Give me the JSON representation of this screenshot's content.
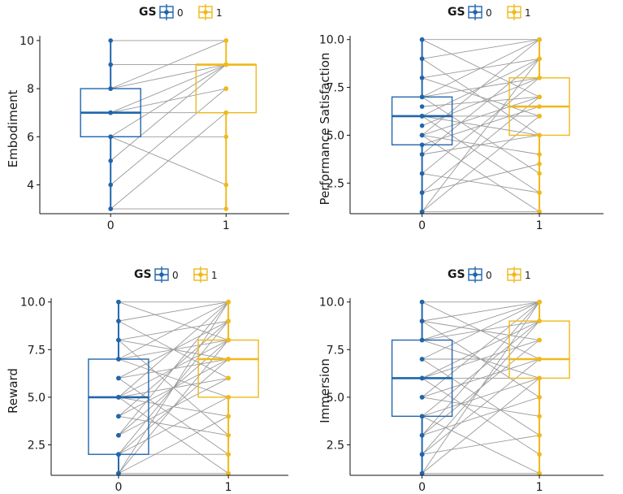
{
  "palette": {
    "group0": "#2166ac",
    "group1": "#f0b81a",
    "line": "#9a9a9a",
    "axis": "#111111"
  },
  "legend": {
    "title": "GS",
    "items": [
      "0",
      "1"
    ]
  },
  "chart_data": [
    {
      "type": "box-paired",
      "ylabel": "Embodiment",
      "xlabel": "",
      "x_categories": [
        "0",
        "1"
      ],
      "ylim": [
        2.8,
        10.2
      ],
      "yticks": [
        4,
        6,
        8,
        10
      ],
      "ytick_labels": [
        "4",
        "6",
        "8",
        "10"
      ],
      "boxes": [
        {
          "group": "0",
          "q1": 6,
          "median": 7,
          "q3": 8,
          "min": 3,
          "max": 10
        },
        {
          "group": "1",
          "q1": 7,
          "median": 9,
          "q3": 9,
          "min": 3,
          "max": 10
        }
      ],
      "pairs": [
        [
          10,
          10
        ],
        [
          9,
          9
        ],
        [
          8,
          10
        ],
        [
          8,
          9
        ],
        [
          7,
          9
        ],
        [
          7,
          8
        ],
        [
          7,
          7
        ],
        [
          6,
          9
        ],
        [
          6,
          6
        ],
        [
          6,
          4
        ],
        [
          5,
          9
        ],
        [
          4,
          8
        ],
        [
          3,
          3
        ],
        [
          3,
          7
        ]
      ]
    },
    {
      "type": "box-paired",
      "ylabel": "Performance Satisfaction",
      "xlabel": "",
      "x_categories": [
        "0",
        "1"
      ],
      "ylim": [
        0.9,
        10.2
      ],
      "yticks": [
        2.5,
        5.0,
        7.5,
        10.0
      ],
      "ytick_labels": [
        "2.5",
        "5.0",
        "7.5",
        "10.0"
      ],
      "boxes": [
        {
          "group": "0",
          "q1": 4.5,
          "median": 6,
          "q3": 7,
          "min": 1,
          "max": 10
        },
        {
          "group": "1",
          "q1": 5,
          "median": 6.5,
          "q3": 8,
          "min": 1,
          "max": 10
        }
      ],
      "pairs": [
        [
          10,
          10
        ],
        [
          10,
          7
        ],
        [
          9,
          10
        ],
        [
          9,
          5
        ],
        [
          8,
          9
        ],
        [
          8,
          6
        ],
        [
          7,
          10
        ],
        [
          7,
          8
        ],
        [
          7,
          3
        ],
        [
          6.5,
          7
        ],
        [
          6,
          9
        ],
        [
          6,
          6
        ],
        [
          6,
          5
        ],
        [
          6,
          2
        ],
        [
          5.5,
          8
        ],
        [
          5,
          10
        ],
        [
          5,
          7
        ],
        [
          5,
          4
        ],
        [
          5,
          1
        ],
        [
          4.5,
          6.5
        ],
        [
          4,
          9
        ],
        [
          4,
          5
        ],
        [
          3,
          8
        ],
        [
          3,
          2
        ],
        [
          2,
          7
        ],
        [
          2,
          3.5
        ],
        [
          1,
          9
        ],
        [
          1,
          6
        ],
        [
          1,
          1
        ]
      ]
    },
    {
      "type": "box-paired",
      "ylabel": "Reward",
      "xlabel": "",
      "x_categories": [
        "0",
        "1"
      ],
      "ylim": [
        0.9,
        10.2
      ],
      "yticks": [
        2.5,
        5.0,
        7.5,
        10.0
      ],
      "ytick_labels": [
        "2.5",
        "5.0",
        "7.5",
        "10.0"
      ],
      "boxes": [
        {
          "group": "0",
          "q1": 2,
          "median": 5,
          "q3": 7,
          "min": 1,
          "max": 10
        },
        {
          "group": "1",
          "q1": 5,
          "median": 7,
          "q3": 8,
          "min": 1,
          "max": 10
        }
      ],
      "pairs": [
        [
          10,
          10
        ],
        [
          10,
          8
        ],
        [
          9,
          10
        ],
        [
          9,
          6
        ],
        [
          8,
          9
        ],
        [
          8,
          7
        ],
        [
          8,
          3
        ],
        [
          7,
          10
        ],
        [
          7,
          8
        ],
        [
          7,
          5
        ],
        [
          6,
          9
        ],
        [
          6,
          7
        ],
        [
          6,
          2
        ],
        [
          5,
          10
        ],
        [
          5,
          8
        ],
        [
          5,
          6
        ],
        [
          5,
          4
        ],
        [
          5,
          1
        ],
        [
          4,
          9
        ],
        [
          4,
          7
        ],
        [
          4,
          3
        ],
        [
          3,
          10
        ],
        [
          3,
          8
        ],
        [
          3,
          6
        ],
        [
          2,
          9
        ],
        [
          2,
          7
        ],
        [
          2,
          5
        ],
        [
          2,
          2
        ],
        [
          1,
          10
        ],
        [
          1,
          8
        ],
        [
          1,
          4
        ],
        [
          1,
          1
        ]
      ]
    },
    {
      "type": "box-paired",
      "ylabel": "Immersion",
      "xlabel": "",
      "x_categories": [
        "0",
        "1"
      ],
      "ylim": [
        0.9,
        10.2
      ],
      "yticks": [
        2.5,
        5.0,
        7.5,
        10.0
      ],
      "ytick_labels": [
        "2.5",
        "5.0",
        "7.5",
        "10.0"
      ],
      "boxes": [
        {
          "group": "0",
          "q1": 4,
          "median": 6,
          "q3": 8,
          "min": 1,
          "max": 10
        },
        {
          "group": "1",
          "q1": 6,
          "median": 7,
          "q3": 9,
          "min": 1,
          "max": 10
        }
      ],
      "pairs": [
        [
          10,
          10
        ],
        [
          10,
          7
        ],
        [
          9,
          10
        ],
        [
          9,
          8
        ],
        [
          9,
          5
        ],
        [
          8,
          10
        ],
        [
          8,
          9
        ],
        [
          8,
          6
        ],
        [
          7,
          10
        ],
        [
          7,
          7
        ],
        [
          7,
          3
        ],
        [
          6,
          9
        ],
        [
          6,
          8
        ],
        [
          6,
          6
        ],
        [
          6,
          2
        ],
        [
          5,
          10
        ],
        [
          5,
          7
        ],
        [
          5,
          4
        ],
        [
          4,
          9
        ],
        [
          4,
          6
        ],
        [
          4,
          1
        ],
        [
          3,
          10
        ],
        [
          3,
          8
        ],
        [
          3,
          5
        ],
        [
          2,
          9
        ],
        [
          2,
          7
        ],
        [
          2,
          3
        ],
        [
          1,
          10
        ],
        [
          1,
          6
        ],
        [
          1,
          1
        ]
      ]
    }
  ]
}
